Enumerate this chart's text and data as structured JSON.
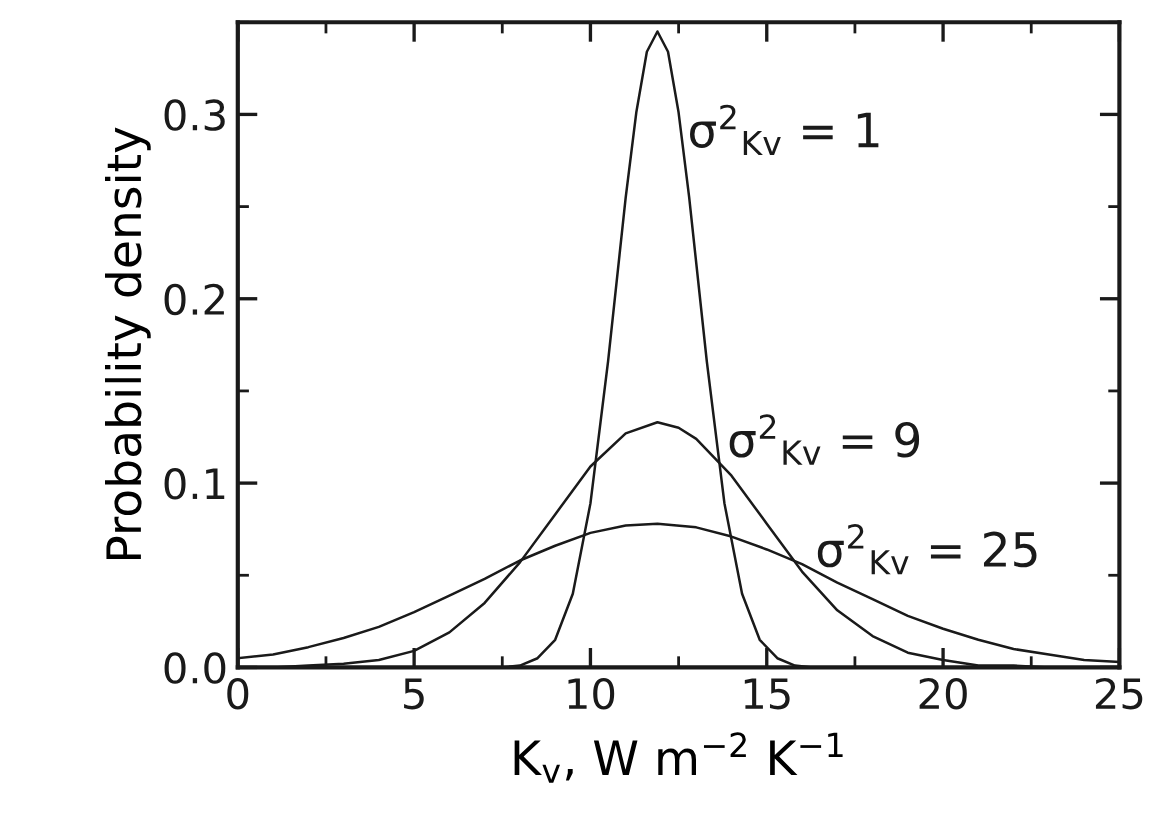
{
  "chart_data": {
    "type": "line",
    "xlabel": "K$_{v}$, W m$^{−2}$ K$^{−1}$",
    "ylabel": "Probability density",
    "xlim": [
      0,
      25
    ],
    "ylim": [
      0,
      0.35
    ],
    "xticks": [
      0,
      5,
      10,
      15,
      20,
      25
    ],
    "yticks": [
      {
        "value": 0,
        "label": "0.0"
      },
      {
        "value": 0.1,
        "label": "0.1"
      },
      {
        "value": 0.2,
        "label": "0.2"
      },
      {
        "value": 0.3,
        "label": "0.3"
      }
    ],
    "line_style": "solid",
    "marker": "none",
    "series": [
      {
        "name": "σ$^{2}$$_{Kv}$ = 1",
        "color": "#1a1a1a",
        "x": [
          7,
          7.5,
          8,
          8.5,
          9,
          9.5,
          10,
          10.5,
          11,
          11.3,
          11.6,
          11.9,
          12.2,
          12.5,
          12.8,
          13.3,
          13.8,
          14.3,
          14.8,
          15.3,
          15.8,
          16.3,
          17
        ],
        "values": [
          0,
          0,
          0.001,
          0.005,
          0.015,
          0.04,
          0.089,
          0.166,
          0.255,
          0.301,
          0.334,
          0.345,
          0.334,
          0.301,
          0.255,
          0.166,
          0.089,
          0.04,
          0.015,
          0.005,
          0.001,
          0,
          0
        ]
      },
      {
        "name": "σ$^{2}$$_{Kv}$ = 9",
        "color": "#1a1a1a",
        "x": [
          0,
          1,
          2,
          3,
          4,
          5,
          6,
          7,
          8,
          9,
          10,
          11,
          11.9,
          12.5,
          13,
          14,
          15,
          16,
          17,
          18,
          19,
          20,
          21,
          22,
          23,
          25
        ],
        "values": [
          0,
          0,
          0.001,
          0.002,
          0.004,
          0.009,
          0.019,
          0.035,
          0.057,
          0.083,
          0.109,
          0.127,
          0.133,
          0.13,
          0.124,
          0.104,
          0.078,
          0.052,
          0.031,
          0.017,
          0.008,
          0.004,
          0.001,
          0.001,
          0,
          0
        ]
      },
      {
        "name": "σ$^{2}$$_{Kv}$ = 25",
        "color": "#1a1a1a",
        "x": [
          0,
          1,
          2,
          3,
          4,
          5,
          6,
          7,
          8,
          9,
          10,
          11,
          11.9,
          13,
          14,
          15,
          16,
          17,
          18,
          19,
          20,
          21,
          22,
          23,
          24,
          25
        ],
        "values": [
          0.005,
          0.007,
          0.011,
          0.016,
          0.022,
          0.03,
          0.039,
          0.048,
          0.058,
          0.066,
          0.073,
          0.077,
          0.078,
          0.076,
          0.071,
          0.064,
          0.056,
          0.046,
          0.037,
          0.028,
          0.021,
          0.015,
          0.01,
          0.007,
          0.004,
          0.003
        ]
      }
    ]
  }
}
